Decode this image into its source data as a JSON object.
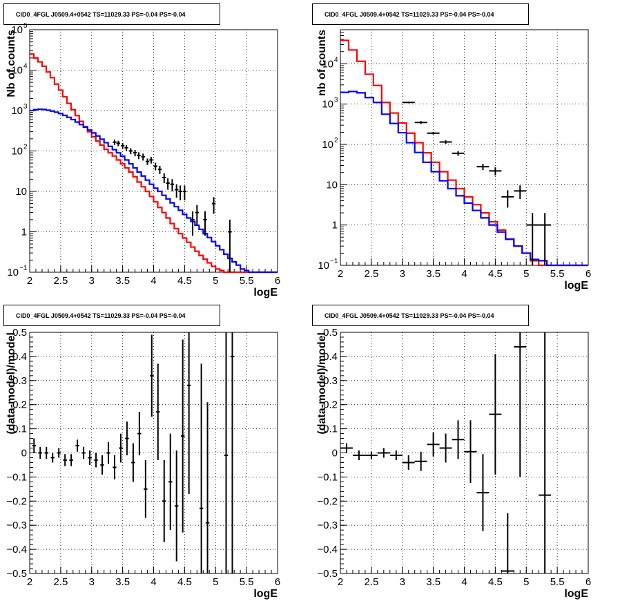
{
  "chart_data": [
    {
      "type": "line",
      "title": "CID0_4FGL J0509.4+0542 TS=11029.33 PS=-0.04 PS=-0.04",
      "xlabel": "logE",
      "ylabel": "Nb of counts",
      "xlim": [
        2,
        6
      ],
      "ylim": [
        0.1,
        100000
      ],
      "log_y": true,
      "grid": true,
      "x_ticks": [
        "2",
        "2.5",
        "3",
        "3.5",
        "4",
        "4.5",
        "5",
        "5.5",
        "6"
      ],
      "y_ticks": [
        {
          "v": 0.1,
          "label": "10",
          "sup": "−1"
        },
        {
          "v": 1,
          "label": "1",
          "sup": ""
        },
        {
          "v": 10,
          "label": "10",
          "sup": ""
        },
        {
          "v": 100,
          "label": "10",
          "sup": "2"
        },
        {
          "v": 1000,
          "label": "10",
          "sup": "3"
        },
        {
          "v": 10000,
          "label": "10",
          "sup": "4"
        },
        {
          "v": 100000,
          "label": "10",
          "sup": "5"
        }
      ],
      "series": [
        {
          "kind": "hist",
          "color": "#ff0000",
          "bin_edges": [
            2,
            6
          ],
          "values": [
            25000,
            20000,
            16000,
            12500,
            9000,
            6500,
            4500,
            3200,
            2200,
            1500,
            1050,
            750,
            540,
            400,
            300,
            225,
            175,
            140,
            110,
            90,
            75,
            60,
            48,
            38,
            30,
            23,
            17,
            13,
            10,
            7.5,
            5.5,
            4,
            3,
            2.2,
            1.6,
            1.2,
            0.9,
            0.7,
            0.55,
            0.42,
            0.33,
            0.26,
            0.21,
            0.17,
            0.14,
            0.12,
            0.11,
            0.1,
            0.1,
            0.1,
            0.1,
            0.1,
            0.1,
            0.1,
            0.1,
            0.1,
            0.1,
            0.1,
            0.1,
            0.1
          ]
        },
        {
          "kind": "hist",
          "color": "#0000ff",
          "bin_edges": [
            2,
            6
          ],
          "values": [
            1000,
            1050,
            1080,
            1060,
            1020,
            970,
            910,
            840,
            760,
            680,
            600,
            520,
            450,
            390,
            330,
            280,
            235,
            195,
            160,
            130,
            108,
            90,
            74,
            60,
            48,
            38,
            30,
            24,
            19,
            15,
            12,
            10,
            8,
            6.5,
            5.2,
            4.2,
            3.4,
            2.7,
            2.2,
            1.8,
            1.45,
            1.15,
            0.9,
            0.72,
            0.57,
            0.45,
            0.36,
            0.28,
            0.22,
            0.18,
            0.15,
            0.12,
            0.11,
            0.1,
            0.1,
            0.1,
            0.1,
            0.1,
            0.1,
            0.1
          ]
        },
        {
          "kind": "points",
          "color": "#000000",
          "points": [
            [
              3.37,
              165,
              25,
              0.03
            ],
            [
              3.43,
              155,
              24,
              0.03
            ],
            [
              3.5,
              135,
              21,
              0.03
            ],
            [
              3.56,
              120,
              19,
              0.03
            ],
            [
              3.63,
              100,
              17,
              0.03
            ],
            [
              3.7,
              90,
              16,
              0.03
            ],
            [
              3.76,
              78,
              15,
              0.03
            ],
            [
              3.83,
              72,
              14,
              0.03
            ],
            [
              3.9,
              55,
              10,
              0.03
            ],
            [
              3.96,
              60,
              11,
              0.03
            ],
            [
              4.03,
              42,
              9,
              0.03
            ],
            [
              4.1,
              35,
              8,
              0.03
            ],
            [
              4.17,
              22,
              6,
              0.03
            ],
            [
              4.23,
              16,
              5,
              0.03
            ],
            [
              4.3,
              15,
              5,
              0.03
            ],
            [
              4.37,
              11,
              4,
              0.03
            ],
            [
              4.43,
              10,
              4,
              0.03
            ],
            [
              4.5,
              10,
              4,
              0.03
            ],
            [
              4.63,
              2,
              1.2,
              0.03
            ],
            [
              4.7,
              3,
              1.6,
              0.03
            ],
            [
              4.83,
              2,
              1.2,
              0.03
            ],
            [
              4.97,
              5,
              2.2,
              0.03
            ],
            [
              5.23,
              1,
              1,
              0.03
            ]
          ]
        }
      ]
    },
    {
      "type": "line",
      "title": "CID0_4FGL J0509.4+0542 TS=11029.33 PS=-0.04 PS=-0.04",
      "xlabel": "logE",
      "ylabel": "nb of counts",
      "xlim": [
        2,
        6
      ],
      "ylim": [
        0.1,
        70000
      ],
      "log_y": true,
      "grid": true,
      "x_ticks": [
        "2",
        "2.5",
        "3",
        "3.5",
        "4",
        "4.5",
        "5",
        "5.5",
        "6"
      ],
      "y_ticks": [
        {
          "v": 0.1,
          "label": "10",
          "sup": "−1"
        },
        {
          "v": 1,
          "label": "1",
          "sup": ""
        },
        {
          "v": 10,
          "label": "10",
          "sup": ""
        },
        {
          "v": 100,
          "label": "10",
          "sup": "2"
        },
        {
          "v": 1000,
          "label": "10",
          "sup": "3"
        },
        {
          "v": 10000,
          "label": "10",
          "sup": "4"
        }
      ],
      "series": [
        {
          "kind": "hist",
          "color": "#ff0000",
          "bin_edges": [
            2,
            6
          ],
          "values": [
            38000,
            22000,
            11500,
            5500,
            2900,
            1100,
            600,
            340,
            190,
            110,
            62,
            36,
            21,
            13,
            8,
            5,
            3.2,
            2,
            1.2,
            0.75,
            0.45,
            0.3,
            0.2,
            0.13,
            0.1,
            0.1,
            0.1,
            0.1,
            0.1,
            0.1
          ]
        },
        {
          "kind": "hist",
          "color": "#0000ff",
          "bin_edges": [
            2,
            6
          ],
          "values": [
            1950,
            2050,
            1900,
            1450,
            1100,
            560,
            330,
            195,
            110,
            63,
            36,
            21,
            12.5,
            8,
            5.3,
            3.5,
            2.3,
            1.5,
            1,
            0.67,
            0.44,
            0.3,
            0.2,
            0.14,
            0.13,
            0.1,
            0.1,
            0.1,
            0.1,
            0.1
          ]
        },
        {
          "kind": "points",
          "color": "#000000",
          "points": [
            [
              3.1,
              1100,
              55,
              0.1
            ],
            [
              3.3,
              350,
              30,
              0.1
            ],
            [
              3.5,
              190,
              14,
              0.1
            ],
            [
              3.7,
              115,
              11,
              0.1
            ],
            [
              3.9,
              60,
              8,
              0.1
            ],
            [
              4.3,
              28,
              5,
              0.1
            ],
            [
              4.5,
              22,
              5,
              0.1
            ],
            [
              4.7,
              5,
              2.3,
              0.1
            ],
            [
              4.9,
              7,
              2.6,
              0.1
            ],
            [
              5.1,
              1,
              0.99,
              0.1
            ],
            [
              5.3,
              1,
              0.99,
              0.1
            ]
          ]
        }
      ]
    },
    {
      "type": "scatter",
      "title": "CID0_4FGL J0509.4+0542 TS=11029.33 PS=-0.04 PS=-0.04",
      "xlabel": "logE",
      "ylabel": "(data-model)/model",
      "xlim": [
        2,
        6
      ],
      "ylim": [
        -0.5,
        0.5
      ],
      "log_y": false,
      "grid": true,
      "x_ticks": [
        "2",
        "2.5",
        "3",
        "3.5",
        "4",
        "4.5",
        "5",
        "5.5",
        "6"
      ],
      "y_ticks": [
        {
          "v": -0.5,
          "label": "−0.5",
          "sup": ""
        },
        {
          "v": -0.4,
          "label": "−0.4",
          "sup": ""
        },
        {
          "v": -0.3,
          "label": "−0.3",
          "sup": ""
        },
        {
          "v": -0.2,
          "label": "−0.2",
          "sup": ""
        },
        {
          "v": -0.1,
          "label": "−0.1",
          "sup": ""
        },
        {
          "v": 0,
          "label": "0",
          "sup": ""
        },
        {
          "v": 0.1,
          "label": "0.1",
          "sup": ""
        },
        {
          "v": 0.2,
          "label": "0.2",
          "sup": ""
        },
        {
          "v": 0.3,
          "label": "0.3",
          "sup": ""
        },
        {
          "v": 0.4,
          "label": "0.4",
          "sup": ""
        },
        {
          "v": 0.5,
          "label": "0.5",
          "sup": ""
        }
      ],
      "series": [
        {
          "kind": "points",
          "color": "#000000",
          "points": [
            [
              2.07,
              0.03,
              0.03,
              0.03
            ],
            [
              2.17,
              0.0,
              0.025,
              0.03
            ],
            [
              2.27,
              0.0,
              0.025,
              0.03
            ],
            [
              2.37,
              -0.02,
              0.02,
              0.03
            ],
            [
              2.47,
              0.0,
              0.02,
              0.03
            ],
            [
              2.57,
              -0.03,
              0.025,
              0.03
            ],
            [
              2.67,
              -0.03,
              0.025,
              0.03
            ],
            [
              2.77,
              0.03,
              0.025,
              0.03
            ],
            [
              2.87,
              0.0,
              0.025,
              0.03
            ],
            [
              2.97,
              -0.02,
              0.03,
              0.03
            ],
            [
              3.07,
              -0.03,
              0.03,
              0.03
            ],
            [
              3.17,
              -0.05,
              0.04,
              0.03
            ],
            [
              3.27,
              0.0,
              0.045,
              0.03
            ],
            [
              3.37,
              -0.06,
              0.05,
              0.03
            ],
            [
              3.47,
              0.02,
              0.06,
              0.03
            ],
            [
              3.57,
              0.06,
              0.07,
              0.03
            ],
            [
              3.67,
              -0.04,
              0.08,
              0.03
            ],
            [
              3.77,
              0.08,
              0.09,
              0.03
            ],
            [
              3.87,
              -0.15,
              0.12,
              0.03
            ],
            [
              3.97,
              0.32,
              0.17,
              0.03
            ],
            [
              4.07,
              0.17,
              0.2,
              0.03
            ],
            [
              4.17,
              -0.2,
              0.17,
              0.03
            ],
            [
              4.27,
              -0.12,
              0.2,
              0.03
            ],
            [
              4.37,
              -0.22,
              0.23,
              0.03
            ],
            [
              4.47,
              0.07,
              0.4,
              0.03
            ],
            [
              4.57,
              0.28,
              0.45,
              0.03
            ],
            [
              4.77,
              -0.23,
              0.6,
              0.03
            ],
            [
              4.87,
              -0.29,
              0.5,
              0.03
            ],
            [
              5.17,
              -0.01,
              0.8,
              0.03
            ],
            [
              5.27,
              0.4,
              0.9,
              0.03
            ]
          ]
        }
      ]
    },
    {
      "type": "scatter",
      "title": "CID0_4FGL J0509.4+0542 TS=11029.33 PS=-0.04 PS=-0.04",
      "xlabel": "logE",
      "ylabel": "(data-model)/model",
      "xlim": [
        2,
        6
      ],
      "ylim": [
        -0.5,
        0.5
      ],
      "log_y": false,
      "grid": true,
      "x_ticks": [
        "2",
        "2.5",
        "3",
        "3.5",
        "4",
        "4.5",
        "5",
        "5.5",
        "6"
      ],
      "y_ticks": [
        {
          "v": -0.5,
          "label": "−0.5",
          "sup": ""
        },
        {
          "v": -0.4,
          "label": "−0.4",
          "sup": ""
        },
        {
          "v": -0.3,
          "label": "−0.3",
          "sup": ""
        },
        {
          "v": -0.2,
          "label": "−0.2",
          "sup": ""
        },
        {
          "v": -0.1,
          "label": "−0.1",
          "sup": ""
        },
        {
          "v": 0,
          "label": "0",
          "sup": ""
        },
        {
          "v": 0.1,
          "label": "0.1",
          "sup": ""
        },
        {
          "v": 0.2,
          "label": "0.2",
          "sup": ""
        },
        {
          "v": 0.3,
          "label": "0.3",
          "sup": ""
        },
        {
          "v": 0.4,
          "label": "0.4",
          "sup": ""
        },
        {
          "v": 0.5,
          "label": "0.5",
          "sup": ""
        }
      ],
      "series": [
        {
          "kind": "points",
          "color": "#000000",
          "points": [
            [
              2.1,
              0.02,
              0.02,
              0.1
            ],
            [
              2.3,
              -0.01,
              0.02,
              0.1
            ],
            [
              2.5,
              -0.01,
              0.015,
              0.1
            ],
            [
              2.7,
              0.0,
              0.02,
              0.1
            ],
            [
              2.9,
              -0.01,
              0.02,
              0.1
            ],
            [
              3.1,
              -0.04,
              0.03,
              0.1
            ],
            [
              3.3,
              -0.035,
              0.04,
              0.1
            ],
            [
              3.5,
              0.035,
              0.05,
              0.1
            ],
            [
              3.7,
              0.02,
              0.06,
              0.1
            ],
            [
              3.9,
              0.055,
              0.08,
              0.1
            ],
            [
              4.1,
              0.005,
              0.13,
              0.1
            ],
            [
              4.3,
              -0.165,
              0.16,
              0.1
            ],
            [
              4.5,
              0.16,
              0.25,
              0.1
            ],
            [
              4.7,
              -0.49,
              0.24,
              0.1
            ],
            [
              4.9,
              0.44,
              0.54,
              0.1
            ],
            [
              5.3,
              -0.175,
              0.95,
              0.1
            ]
          ]
        }
      ]
    }
  ]
}
